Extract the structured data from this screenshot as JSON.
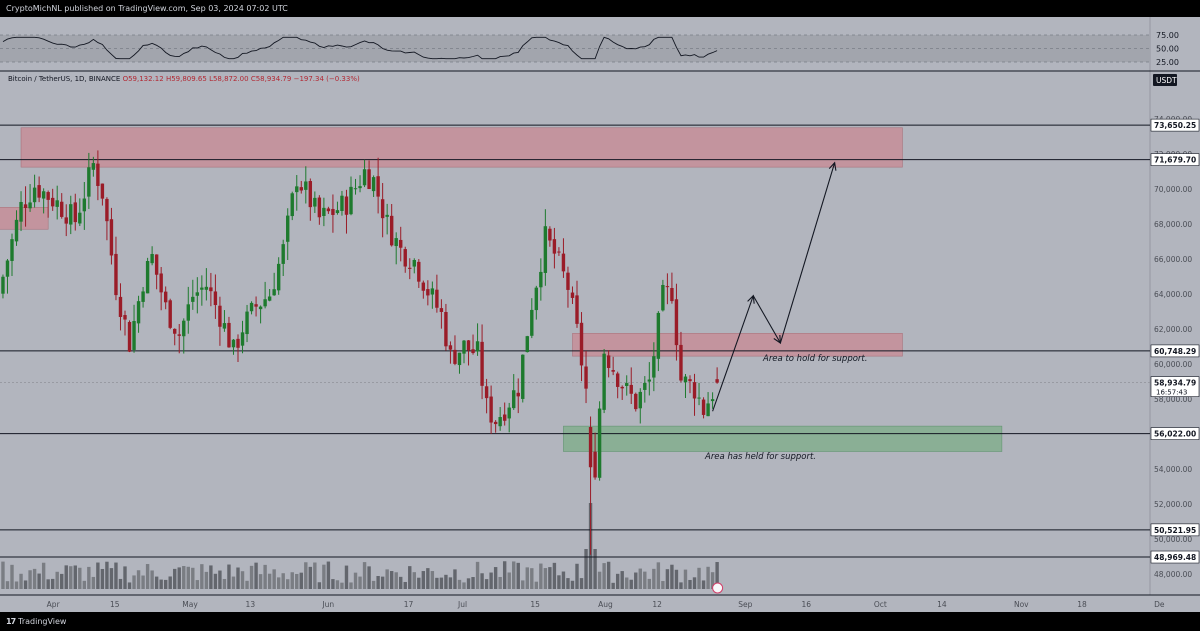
{
  "publish_line": "CryptoMichNL published on TradingView.com, Sep 03, 2024 07:02 UTC",
  "footer_brand": "TradingView",
  "symbol": {
    "name": "Bitcoin / TetherUS, 1D, BINANCE",
    "open": "O59,132.12",
    "high": "H59,809.65",
    "low": "L58,872.00",
    "close": "C58,934.79",
    "change": "−197.34 (−0.33%)"
  },
  "currency_label": "USDT",
  "countdown": "16:57:43",
  "annotations": {
    "hold_text": "Area to hold for support.",
    "held_text": "Area has held for support."
  },
  "colors": {
    "background": "#b2b5be",
    "up": "#1e7a2e",
    "down": "#9a1c28",
    "resistance_zone": "#c98c96",
    "support_zone": "#7fae8a",
    "level_line": "#131722",
    "rsi_band": "#a2a5ad"
  },
  "chart_data": {
    "type": "candlestick",
    "interval": "1D",
    "ylim": [
      46800,
      76800
    ],
    "y_ticks": [
      "74,000.00",
      "72,000.00",
      "70,000.00",
      "68,000.00",
      "66,000.00",
      "64,000.00",
      "62,000.00",
      "60,000.00",
      "58,000.00",
      "54,000.00",
      "52,000.00",
      "50,000.00",
      "48,000.00"
    ],
    "x_ticks": [
      "Apr",
      "15",
      "May",
      "13",
      "Jun",
      "17",
      "Jul",
      "15",
      "Aug",
      "12",
      "Sep",
      "16",
      "Oct",
      "14",
      "Nov",
      "18",
      "De"
    ],
    "levels": [
      {
        "label": "73,650.25",
        "value": 73650.25
      },
      {
        "label": "71,679.70",
        "value": 71679.7
      },
      {
        "label": "60,748.29",
        "value": 60748.29
      },
      {
        "label": "56,022.00",
        "value": 56022.0
      },
      {
        "label": "50,521.95",
        "value": 50521.95
      },
      {
        "label": "48,969.48",
        "value": 48969.48
      }
    ],
    "current_price": {
      "label": "58,934.79",
      "value": 58934.79
    },
    "zones": [
      {
        "kind": "resistance",
        "from_day": 2,
        "to_day": 197,
        "low": 71250,
        "high": 73500
      },
      {
        "kind": "resistance",
        "from_day": 124,
        "to_day": 197,
        "low": 60450,
        "high": 61750
      },
      {
        "kind": "support",
        "from_day": 122,
        "to_day": 219,
        "low": 55000,
        "high": 56450
      },
      {
        "kind": "resistance",
        "from_day": -8,
        "to_day": 8,
        "low": 67700,
        "high": 68950
      }
    ],
    "path_points": [
      {
        "day": 155,
        "price": 57300
      },
      {
        "day": 164,
        "price": 63900
      },
      {
        "day": 170,
        "price": 61200
      },
      {
        "day": 182,
        "price": 71500
      }
    ],
    "rsi": {
      "upper": "75.00",
      "middle": "50.00",
      "lower": "25.00",
      "band": [
        30,
        70
      ]
    }
  }
}
